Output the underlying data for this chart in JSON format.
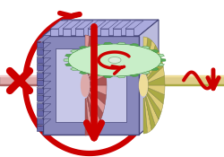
{
  "bg_color": "#ffffff",
  "carrier_top_color": "#aaaadd",
  "carrier_front_color": "#8888bb",
  "carrier_right_color": "#bbbbdd",
  "carrier_bottom_color": "#6666aa",
  "carrier_edge": "#444477",
  "left_sun_color": "#dd9999",
  "left_sun_mid": "#cc7777",
  "left_sun_dark": "#aa5555",
  "right_sun_color": "#ddcc77",
  "right_sun_mid": "#ccbb55",
  "right_sun_dark": "#aaaa44",
  "planet_color": "#aaddaa",
  "planet_mid": "#88cc88",
  "planet_dark": "#55aa55",
  "shaft_left_color": "#ddaaaa",
  "shaft_left_dark": "#bb8888",
  "shaft_right_color": "#ddcc88",
  "shaft_right_dark": "#bbaa66",
  "arrow_color": "#cc0000",
  "figsize": [
    2.5,
    1.75
  ],
  "dpi": 100
}
